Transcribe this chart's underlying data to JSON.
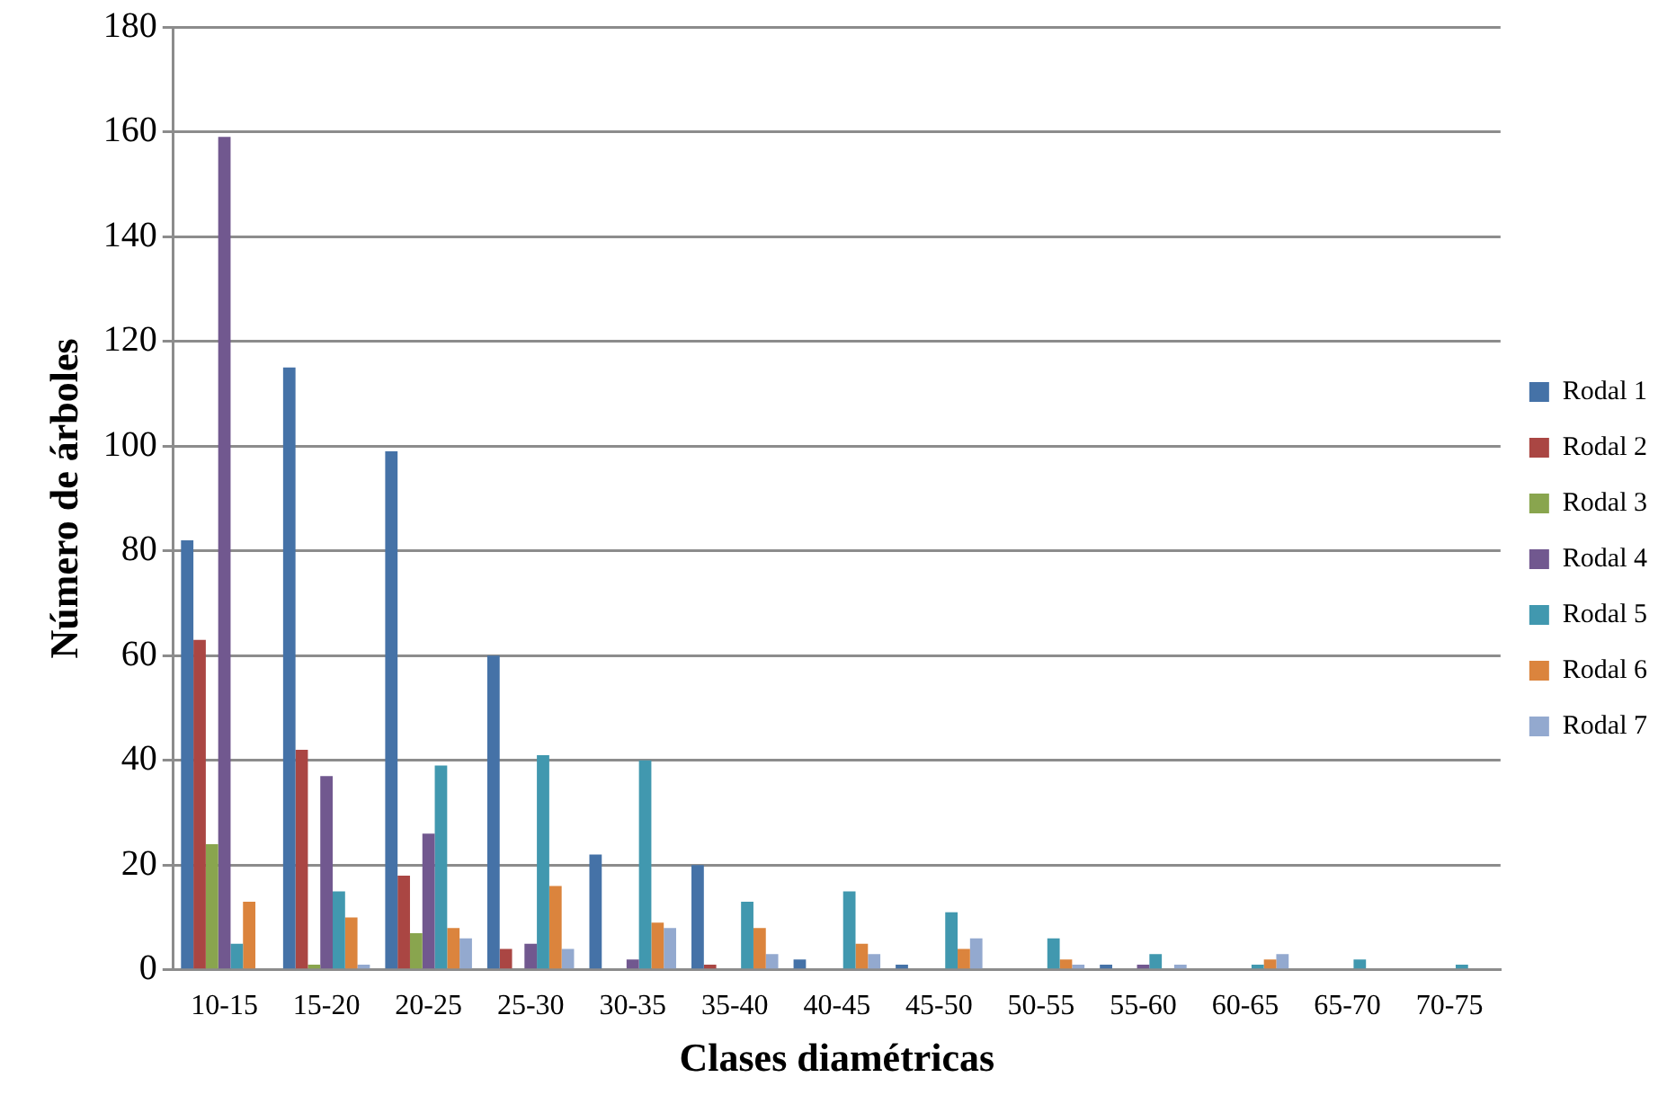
{
  "chart_data": {
    "type": "bar",
    "xlabel": "Clases diamétricas",
    "ylabel": "Número de árboles",
    "categories": [
      "10-15",
      "15-20",
      "20-25",
      "25-30",
      "30-35",
      "35-40",
      "40-45",
      "45-50",
      "50-55",
      "55-60",
      "60-65",
      "65-70",
      "70-75"
    ],
    "series": [
      {
        "name": "Rodal 1",
        "color": "#4572a7",
        "values": [
          82,
          115,
          99,
          60,
          22,
          20,
          2,
          1,
          0,
          1,
          0,
          0,
          0
        ]
      },
      {
        "name": "Rodal 2",
        "color": "#aa4643",
        "values": [
          63,
          42,
          18,
          4,
          0,
          1,
          0,
          0,
          0,
          0,
          0,
          0,
          0
        ]
      },
      {
        "name": "Rodal 3",
        "color": "#89a54e",
        "values": [
          24,
          1,
          7,
          0,
          0,
          0,
          0,
          0,
          0,
          0,
          0,
          0,
          0
        ]
      },
      {
        "name": "Rodal 4",
        "color": "#71588f",
        "values": [
          159,
          37,
          26,
          5,
          2,
          0,
          0,
          0,
          0,
          1,
          0,
          0,
          0
        ]
      },
      {
        "name": "Rodal 5",
        "color": "#4198af",
        "values": [
          5,
          15,
          39,
          41,
          40,
          13,
          15,
          11,
          6,
          3,
          1,
          2,
          1
        ]
      },
      {
        "name": "Rodal 6",
        "color": "#db843d",
        "values": [
          13,
          10,
          8,
          16,
          9,
          8,
          5,
          4,
          2,
          0,
          2,
          0,
          0
        ]
      },
      {
        "name": "Rodal 7",
        "color": "#93a9cf",
        "values": [
          0,
          1,
          6,
          4,
          8,
          3,
          3,
          6,
          1,
          1,
          3,
          0,
          0
        ]
      }
    ],
    "ylim": [
      0,
      180
    ],
    "yticks": [
      0,
      20,
      40,
      60,
      80,
      100,
      120,
      140,
      160,
      180
    ],
    "grid": "y",
    "legend": "right"
  }
}
